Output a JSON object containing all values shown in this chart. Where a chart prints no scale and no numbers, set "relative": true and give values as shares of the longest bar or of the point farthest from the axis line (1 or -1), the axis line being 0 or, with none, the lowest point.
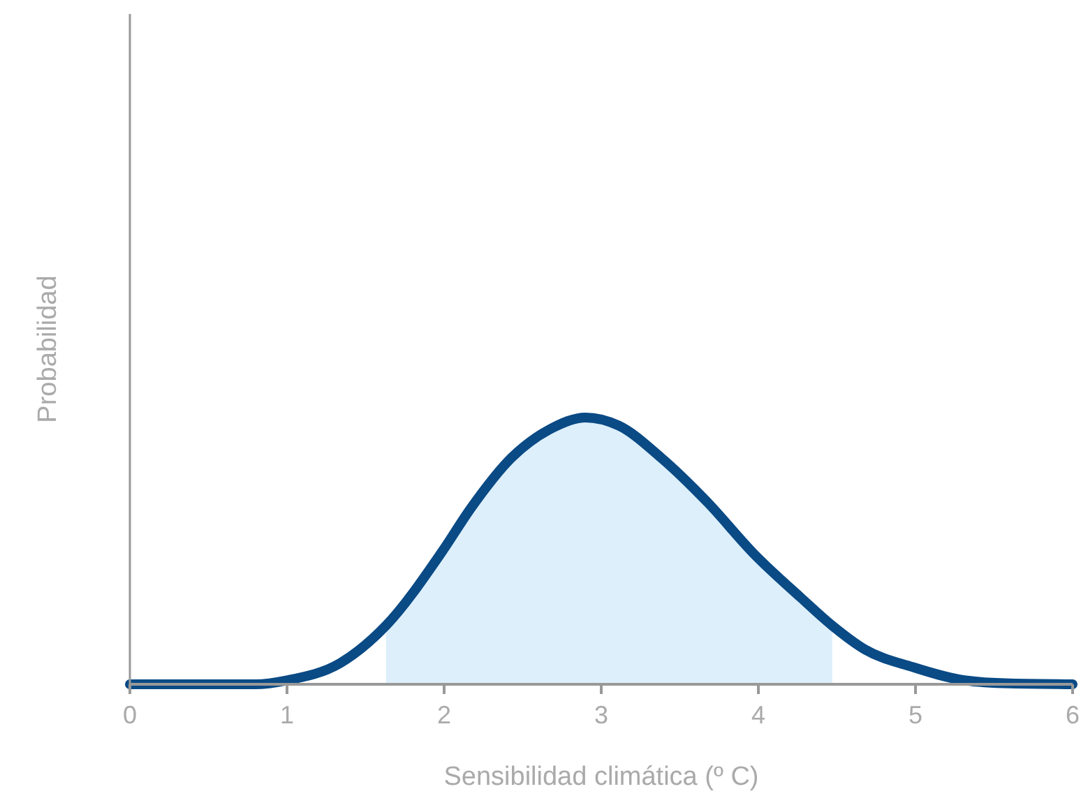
{
  "chart_data": {
    "type": "line",
    "relative": true,
    "xlabel": "Sensibilidad climática (º C)",
    "ylabel": "Probabilidad",
    "xlim": [
      0,
      6
    ],
    "xticks": [
      0,
      1,
      2,
      3,
      4,
      5,
      6
    ],
    "tick_labels": "x",
    "line_style": "solid",
    "series": [
      {
        "type": "area",
        "color": "#ddeffb",
        "x": [
          1.63,
          1.99,
          2.17,
          2.43,
          2.67,
          2.9,
          3.11,
          3.38,
          3.68,
          3.97,
          4.27,
          4.47
        ],
        "values": [
          0.22,
          0.5,
          0.66,
          0.85,
          0.955,
          1,
          0.97,
          0.85,
          0.68,
          0.49,
          0.325,
          0.22
        ]
      },
      {
        "color": "#0a4a85",
        "x": [
          0,
          0.8,
          1.0,
          1.34,
          1.63,
          1.99,
          2.17,
          2.43,
          2.67,
          2.9,
          3.11,
          3.38,
          3.68,
          3.97,
          4.27,
          4.47,
          4.68,
          4.98,
          5.31,
          5.6,
          6
        ],
        "values": [
          0,
          0,
          0.015,
          0.08,
          0.22,
          0.5,
          0.66,
          0.85,
          0.955,
          1,
          0.97,
          0.85,
          0.68,
          0.49,
          0.325,
          0.22,
          0.13,
          0.065,
          0.015,
          0.003,
          0
        ]
      }
    ]
  }
}
